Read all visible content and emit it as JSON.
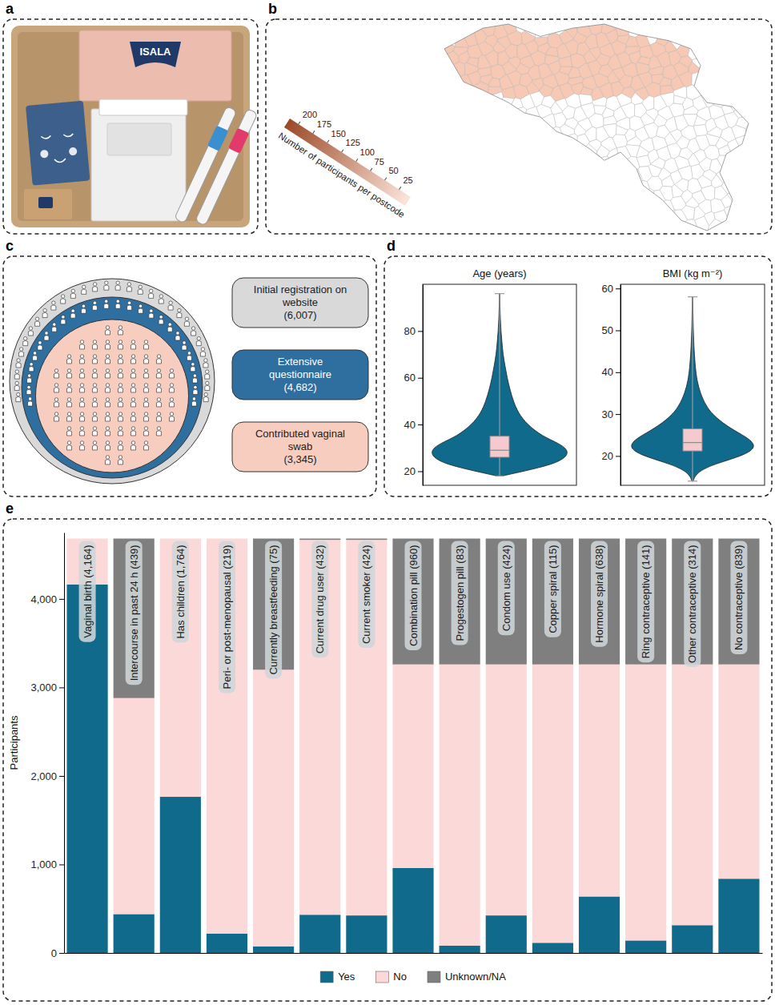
{
  "panel_letters": [
    "a",
    "b",
    "c",
    "d",
    "e"
  ],
  "kit_photo": {
    "logo_text": "ISALA"
  },
  "map": {
    "colorbar": {
      "title": "Number of participants per postcode",
      "range": [
        5,
        215
      ],
      "ticks": [
        25,
        50,
        75,
        100,
        125,
        150,
        175,
        200
      ]
    }
  },
  "cohort": {
    "stages": [
      {
        "label": "Initial registration on website",
        "count": 6007,
        "count_label": "(6,007)"
      },
      {
        "label": "Extensive questionnaire",
        "count": 4682,
        "count_label": "(4,682)"
      },
      {
        "label": "Contributed vaginal swab",
        "count": 3345,
        "count_label": "(3,345)"
      }
    ]
  },
  "chart_data": [
    {
      "type": "violin",
      "title": "Age (years)",
      "ylim": [
        14,
        100
      ],
      "yticks": [
        20,
        40,
        60,
        80
      ],
      "color": "#0f6a8b",
      "density": {
        "values": [
          18,
          20,
          23,
          26,
          29,
          32,
          35,
          40,
          45,
          50,
          55,
          60,
          65,
          70,
          75,
          80,
          85,
          90,
          96
        ],
        "width": [
          0.04,
          0.35,
          0.78,
          0.97,
          1.0,
          0.86,
          0.62,
          0.4,
          0.27,
          0.2,
          0.15,
          0.11,
          0.08,
          0.05,
          0.035,
          0.02,
          0.012,
          0.006,
          0.003
        ]
      },
      "box": {
        "min": 18,
        "q1": 26,
        "median": 29,
        "q3": 35,
        "max": 96
      }
    },
    {
      "type": "violin",
      "title": "BMI (kg m⁻²)",
      "ylim": [
        13,
        61
      ],
      "yticks": [
        20,
        30,
        40,
        50,
        60
      ],
      "color": "#0f6a8b",
      "density": {
        "values": [
          14,
          16,
          18,
          20,
          22,
          24,
          26,
          28,
          30,
          32,
          35,
          38,
          41,
          45,
          50,
          55,
          58
        ],
        "width": [
          0.01,
          0.06,
          0.32,
          0.78,
          1.0,
          0.9,
          0.66,
          0.46,
          0.31,
          0.21,
          0.12,
          0.07,
          0.045,
          0.025,
          0.012,
          0.006,
          0.003
        ]
      },
      "box": {
        "min": 14,
        "q1": 21.2,
        "median": 23.2,
        "q3": 26.5,
        "max": 58
      }
    },
    {
      "type": "bar",
      "stacked": true,
      "y_label": "Participants",
      "ylim": [
        0,
        4750
      ],
      "yticks": [
        0,
        {
          "value": 1000,
          "label": "1,000"
        },
        {
          "value": 2000,
          "label": "2,000"
        },
        {
          "value": 3000,
          "label": "3,000"
        },
        {
          "value": 4000,
          "label": "4,000"
        }
      ],
      "grid": false,
      "legend": "bottom",
      "tick_labels": "y",
      "categories": [
        "Vaginal birth (4,164)",
        "Intercourse in past 24 h (439)",
        "Has children (1,764)",
        "Peri- or post-menopausal (219)",
        "Currently breastfeeding (75)",
        "Current drug user (432)",
        "Current smoker (424)",
        "Combination pill (960)",
        "Progestogen pill (83)",
        "Condom use (424)",
        "Copper spiral (115)",
        "Hormone spiral (638)",
        "Ring contraceptive (141)",
        "Other contraceptive (314)",
        "No contraceptive (839)"
      ],
      "series": [
        {
          "name": "Yes",
          "color": "#0f6a8b",
          "values": [
            4164,
            439,
            1764,
            219,
            75,
            432,
            424,
            960,
            83,
            424,
            115,
            638,
            141,
            314,
            839
          ]
        },
        {
          "name": "No",
          "color": "#fbd9d9",
          "values": [
            518,
            2441,
            2918,
            4463,
            3125,
            4235,
            4243,
            2300,
            3177,
            2836,
            3145,
            2622,
            3119,
            2946,
            2421
          ]
        },
        {
          "name": "Unknown/NA",
          "color": "#7f7f7f",
          "values": [
            0,
            1802,
            0,
            0,
            1482,
            15,
            15,
            1422,
            1422,
            1422,
            1422,
            1422,
            1422,
            1422,
            1422
          ]
        }
      ]
    }
  ]
}
